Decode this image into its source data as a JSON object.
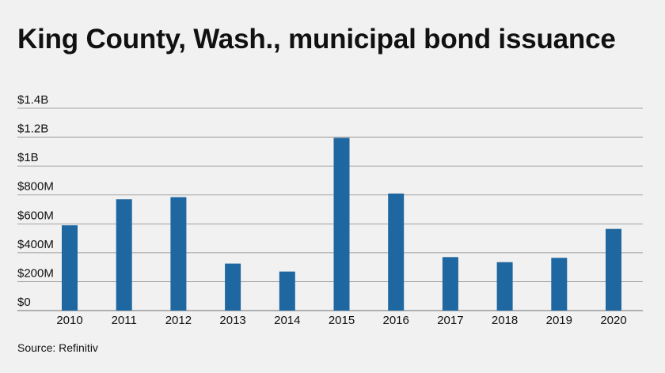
{
  "chart_data": {
    "type": "bar",
    "title": "King County, Wash., municipal bond issuance",
    "categories": [
      "2010",
      "2011",
      "2012",
      "2013",
      "2014",
      "2015",
      "2016",
      "2017",
      "2018",
      "2019",
      "2020"
    ],
    "series": [
      {
        "values": [
          590,
          770,
          785,
          325,
          270,
          1195,
          810,
          370,
          335,
          365,
          565
        ]
      }
    ],
    "value_units": "millions USD",
    "ylim": [
      0,
      1400
    ],
    "y_ticks": [
      0,
      200,
      400,
      600,
      800,
      1000,
      1200,
      1400
    ],
    "y_tick_labels": [
      "$0",
      "$200M",
      "$400M",
      "$600M",
      "$800M",
      "$1B",
      "$1.2B",
      "$1.4B"
    ],
    "xlabel": "",
    "ylabel": "",
    "grid": true,
    "legend": "none",
    "bar_color": "#1f67a0",
    "grid_color": "#8a8a8a"
  },
  "source": "Source: Refinitiv"
}
